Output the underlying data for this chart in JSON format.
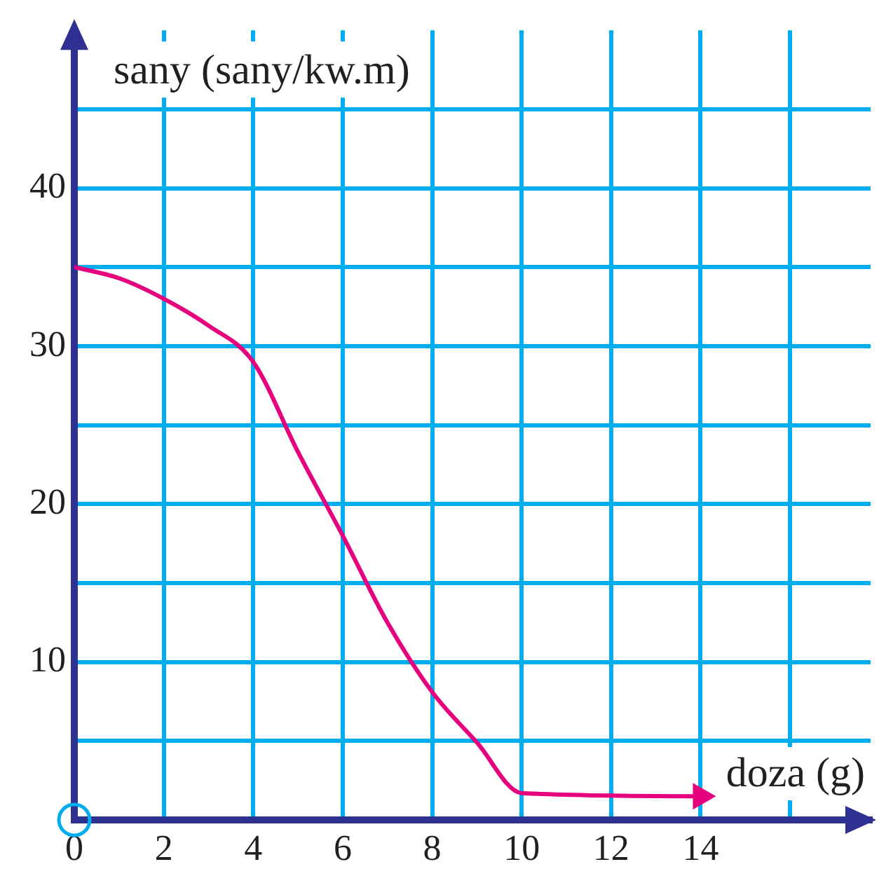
{
  "chart_data": {
    "type": "line",
    "xlabel": "doza (g)",
    "ylabel": "sany (sany/kw.m)",
    "x": [
      0,
      1,
      2,
      3,
      4,
      5,
      6,
      7,
      8,
      9,
      10,
      14
    ],
    "series": [
      {
        "color": "#e6007e",
        "values": [
          35,
          34.3,
          33,
          31.3,
          29,
          23.3,
          18,
          12.5,
          8.1,
          4.9,
          1.7,
          1.5
        ]
      }
    ],
    "xlim": [
      0,
      17.8
    ],
    "ylim": [
      0,
      50
    ],
    "xticks": [
      0,
      2,
      4,
      6,
      8,
      10,
      12,
      14,
      {
        "value": 16,
        "label": null
      }
    ],
    "yticks": [
      {
        "value": 0,
        "label": null
      },
      {
        "value": 5,
        "label": null
      },
      10,
      {
        "value": 15,
        "label": null
      },
      20,
      {
        "value": 25,
        "label": null
      },
      30,
      {
        "value": 35,
        "label": null
      },
      40,
      {
        "value": 45,
        "label": null
      }
    ],
    "grid": true,
    "marker": "none",
    "line_style": "solid",
    "legend": false
  }
}
